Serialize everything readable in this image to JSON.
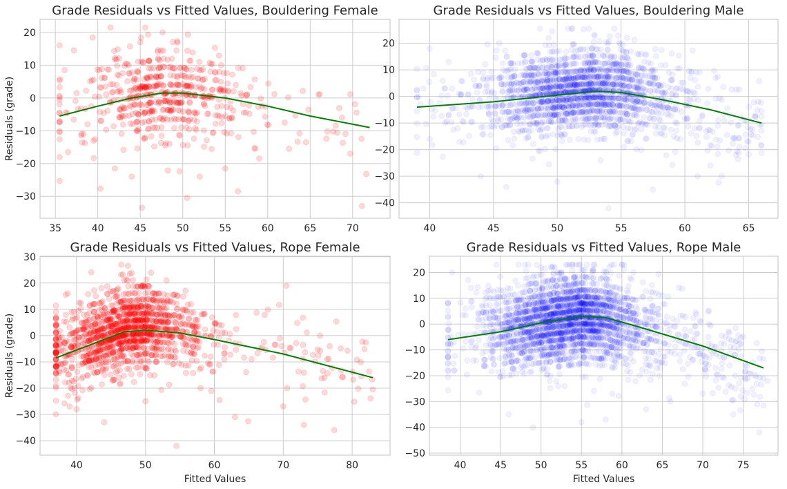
{
  "figure": {
    "colors": {
      "female": "#ff0000",
      "male": "#0000ff",
      "trend": "#008000",
      "grid": "#cccccc"
    }
  },
  "chart_data": [
    {
      "type": "scatter",
      "title": "Grade Residuals vs Fitted Values, Bouldering Female",
      "xlabel": "",
      "ylabel": "Residuals (grade)",
      "xlim": [
        33.2,
        74.4
      ],
      "ylim": [
        -36.7,
        24
      ],
      "xticks": [
        35,
        40,
        45,
        50,
        55,
        60,
        65,
        70
      ],
      "yticks": [
        -30,
        -20,
        -10,
        0,
        10,
        20
      ],
      "grid": true,
      "point_color": "#ff0000",
      "point_alpha": 0.15,
      "trend": {
        "name": "",
        "color": "#008000",
        "x": [
          35.5,
          40,
          44,
          47.5,
          50,
          55,
          60,
          65,
          72
        ],
        "y": [
          -5.5,
          -2.5,
          0,
          1.5,
          1.5,
          0,
          -2.5,
          -5.5,
          -9
        ]
      },
      "cloud": {
        "count": 600,
        "x_center": 47.5,
        "x_spread": 4.5,
        "y_center": 0,
        "y_spread": 7.5,
        "x_min": 35.5,
        "x_max": 72,
        "y_min": -33.5,
        "y_max": 21.5,
        "tilt": -0.35
      },
      "outliers": [
        [
          41.5,
          21.5
        ],
        [
          45,
          17
        ],
        [
          44,
          -24
        ],
        [
          45.2,
          -33.5
        ],
        [
          50.5,
          -30.5
        ],
        [
          52,
          -24
        ],
        [
          55,
          -21.5
        ],
        [
          56.5,
          -28.5
        ],
        [
          59,
          -18.5
        ],
        [
          62.5,
          -15.5
        ],
        [
          64.5,
          -13.5
        ],
        [
          62,
          -7.5
        ],
        [
          36.5,
          -16.5
        ],
        [
          37.5,
          1.5
        ],
        [
          35.5,
          -0.5
        ],
        [
          42,
          -21.5
        ]
      ]
    },
    {
      "type": "scatter",
      "title": "Grade Residuals vs Fitted Values, Bouldering Male",
      "xlabel": "",
      "ylabel": "",
      "xlim": [
        37.6,
        67.3
      ],
      "ylim": [
        -45.8,
        29
      ],
      "xticks": [
        40,
        45,
        50,
        55,
        60,
        65
      ],
      "yticks": [
        -40,
        -30,
        -20,
        -10,
        0,
        10,
        20
      ],
      "grid": true,
      "point_color": "#0000ff",
      "point_alpha": 0.06,
      "trend": {
        "name": "",
        "color": "#008000",
        "x": [
          39,
          45,
          50,
          53,
          55,
          58,
          62,
          66
        ],
        "y": [
          -4,
          -2,
          0.5,
          2,
          1.5,
          -1,
          -5,
          -10
        ]
      },
      "cloud": {
        "count": 2200,
        "x_center": 51.5,
        "x_spread": 3.5,
        "y_center": 0.5,
        "y_spread": 8,
        "x_min": 39,
        "x_max": 66,
        "y_min": -42,
        "y_max": 25.5,
        "tilt": -0.45
      },
      "outliers": [
        [
          40,
          18
        ],
        [
          41.5,
          13
        ],
        [
          44,
          -30
        ],
        [
          46,
          -34
        ],
        [
          50,
          -32
        ],
        [
          54,
          -42
        ],
        [
          57.5,
          -35
        ],
        [
          61,
          -30
        ],
        [
          62,
          -26
        ],
        [
          64,
          -22
        ],
        [
          65,
          -17
        ],
        [
          40,
          -16
        ]
      ]
    },
    {
      "type": "scatter",
      "title": "Grade Residuals vs Fitted Values, Rope Female",
      "xlabel": "Fitted Values",
      "ylabel": "Residuals (grade)",
      "xlim": [
        34.7,
        85.5
      ],
      "ylim": [
        -45.5,
        30.2
      ],
      "xticks": [
        40,
        50,
        60,
        70,
        80
      ],
      "yticks": [
        -40,
        -30,
        -20,
        -10,
        0,
        10,
        20,
        30
      ],
      "grid": true,
      "point_color": "#ff0000",
      "point_alpha": 0.15,
      "trend": {
        "name": "",
        "color": "#008000",
        "x": [
          37,
          42,
          47,
          50,
          55,
          60,
          70,
          83
        ],
        "y": [
          -8.5,
          -3.5,
          1.5,
          2,
          1,
          -1.5,
          -7,
          -16
        ]
      },
      "cloud": {
        "count": 1500,
        "x_center": 47,
        "x_spread": 5,
        "y_center": 1.5,
        "y_spread": 8,
        "x_min": 37,
        "x_max": 83,
        "y_min": -42,
        "y_max": 27,
        "tilt": -0.35
      },
      "outliers": [
        [
          46.5,
          27
        ],
        [
          44,
          -33
        ],
        [
          54.5,
          -42
        ],
        [
          63,
          -31
        ],
        [
          73,
          -34
        ],
        [
          70,
          -27
        ],
        [
          76,
          -16
        ],
        [
          83,
          -20.5
        ],
        [
          39,
          -27
        ],
        [
          40,
          -28
        ],
        [
          50,
          -25
        ],
        [
          58,
          -20
        ]
      ]
    },
    {
      "type": "scatter",
      "title": "Grade Residuals vs Fitted Values, Rope Male",
      "xlabel": "Fitted Values",
      "ylabel": "",
      "xlim": [
        36.2,
        79.3
      ],
      "ylim": [
        -50.8,
        26.3
      ],
      "xticks": [
        40,
        45,
        50,
        55,
        60,
        65,
        70,
        75
      ],
      "yticks": [
        -50,
        -40,
        -30,
        -20,
        -10,
        0,
        10,
        20
      ],
      "grid": true,
      "point_color": "#0000ff",
      "point_alpha": 0.06,
      "trend": {
        "name": "",
        "color": "#008000",
        "x": [
          38.5,
          45,
          50,
          55,
          58,
          62,
          70,
          77.5
        ],
        "y": [
          -6,
          -3,
          0.5,
          3,
          2.5,
          -1,
          -8.5,
          -17
        ]
      },
      "cloud": {
        "count": 3000,
        "x_center": 53,
        "x_spread": 4.5,
        "y_center": 0,
        "y_spread": 8.5,
        "x_min": 38.5,
        "x_max": 77.5,
        "y_min": -47,
        "y_max": 23,
        "tilt": -0.45
      },
      "outliers": [
        [
          39,
          20
        ],
        [
          41,
          17
        ],
        [
          46,
          -35
        ],
        [
          49,
          -40
        ],
        [
          55,
          -38
        ],
        [
          58,
          -37
        ],
        [
          63,
          -33
        ],
        [
          66,
          -30
        ],
        [
          70,
          -27
        ],
        [
          74,
          -25
        ],
        [
          77,
          -42
        ],
        [
          78,
          -22
        ]
      ]
    }
  ]
}
